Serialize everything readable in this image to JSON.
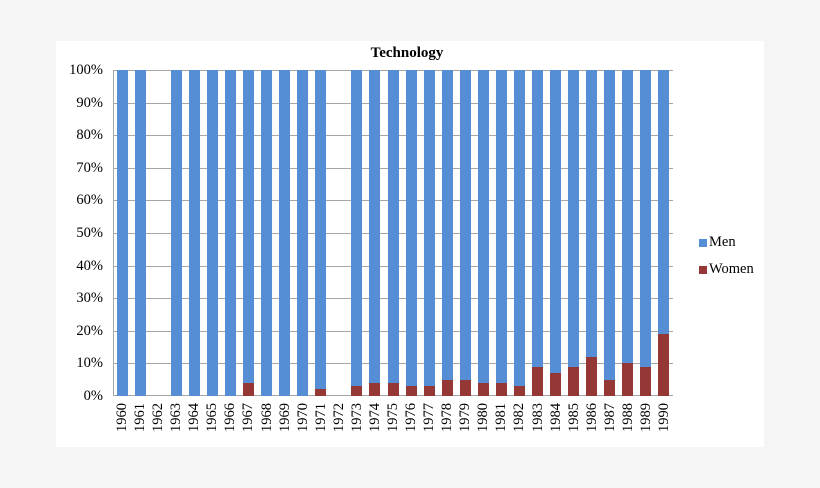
{
  "chart_data": {
    "type": "bar",
    "stacked": true,
    "percent": true,
    "title": "Technology",
    "xlabel": "",
    "ylabel": "",
    "ylim": [
      0,
      100
    ],
    "y_ticks": [
      "0%",
      "10%",
      "20%",
      "30%",
      "40%",
      "50%",
      "60%",
      "70%",
      "80%",
      "90%",
      "100%"
    ],
    "grid": true,
    "legend_position": "right",
    "categories": [
      "1960",
      "1961",
      "1962",
      "1963",
      "1964",
      "1965",
      "1966",
      "1967",
      "1968",
      "1969",
      "1970",
      "1971",
      "1972",
      "1973",
      "1974",
      "1975",
      "1976",
      "1977",
      "1978",
      "1979",
      "1980",
      "1981",
      "1982",
      "1983",
      "1984",
      "1985",
      "1986",
      "1987",
      "1988",
      "1989",
      "1990"
    ],
    "series": [
      {
        "name": "Men",
        "color": "#558ED5",
        "values": [
          100,
          100,
          null,
          100,
          100,
          100,
          100,
          96,
          100,
          100,
          100,
          98,
          null,
          97,
          96,
          96,
          97,
          97,
          95,
          95,
          96,
          96,
          97,
          91,
          93,
          91,
          88,
          95,
          90,
          91,
          81
        ]
      },
      {
        "name": "Women",
        "color": "#953735",
        "values": [
          0,
          0,
          null,
          0,
          0,
          0,
          0,
          4,
          0,
          0,
          0,
          2,
          null,
          3,
          4,
          4,
          3,
          3,
          5,
          5,
          4,
          4,
          3,
          9,
          7,
          9,
          12,
          5,
          10,
          9,
          19
        ]
      }
    ]
  },
  "legend": {
    "men": "Men",
    "women": "Women"
  }
}
